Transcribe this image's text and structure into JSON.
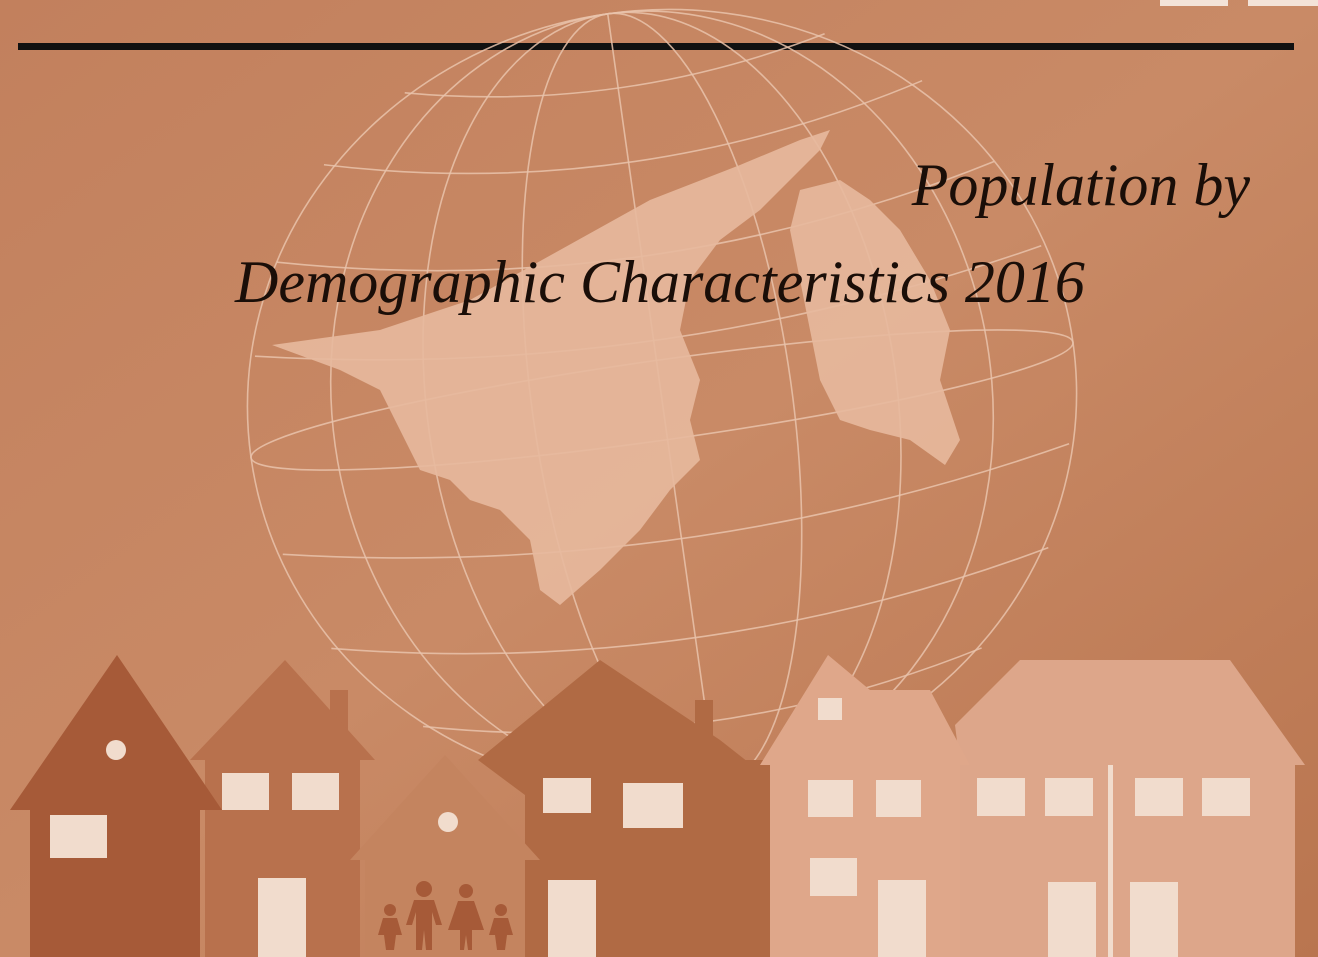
{
  "cover": {
    "title_line1": "Population by",
    "title_line2": "Demographic Characteristics 2016"
  }
}
